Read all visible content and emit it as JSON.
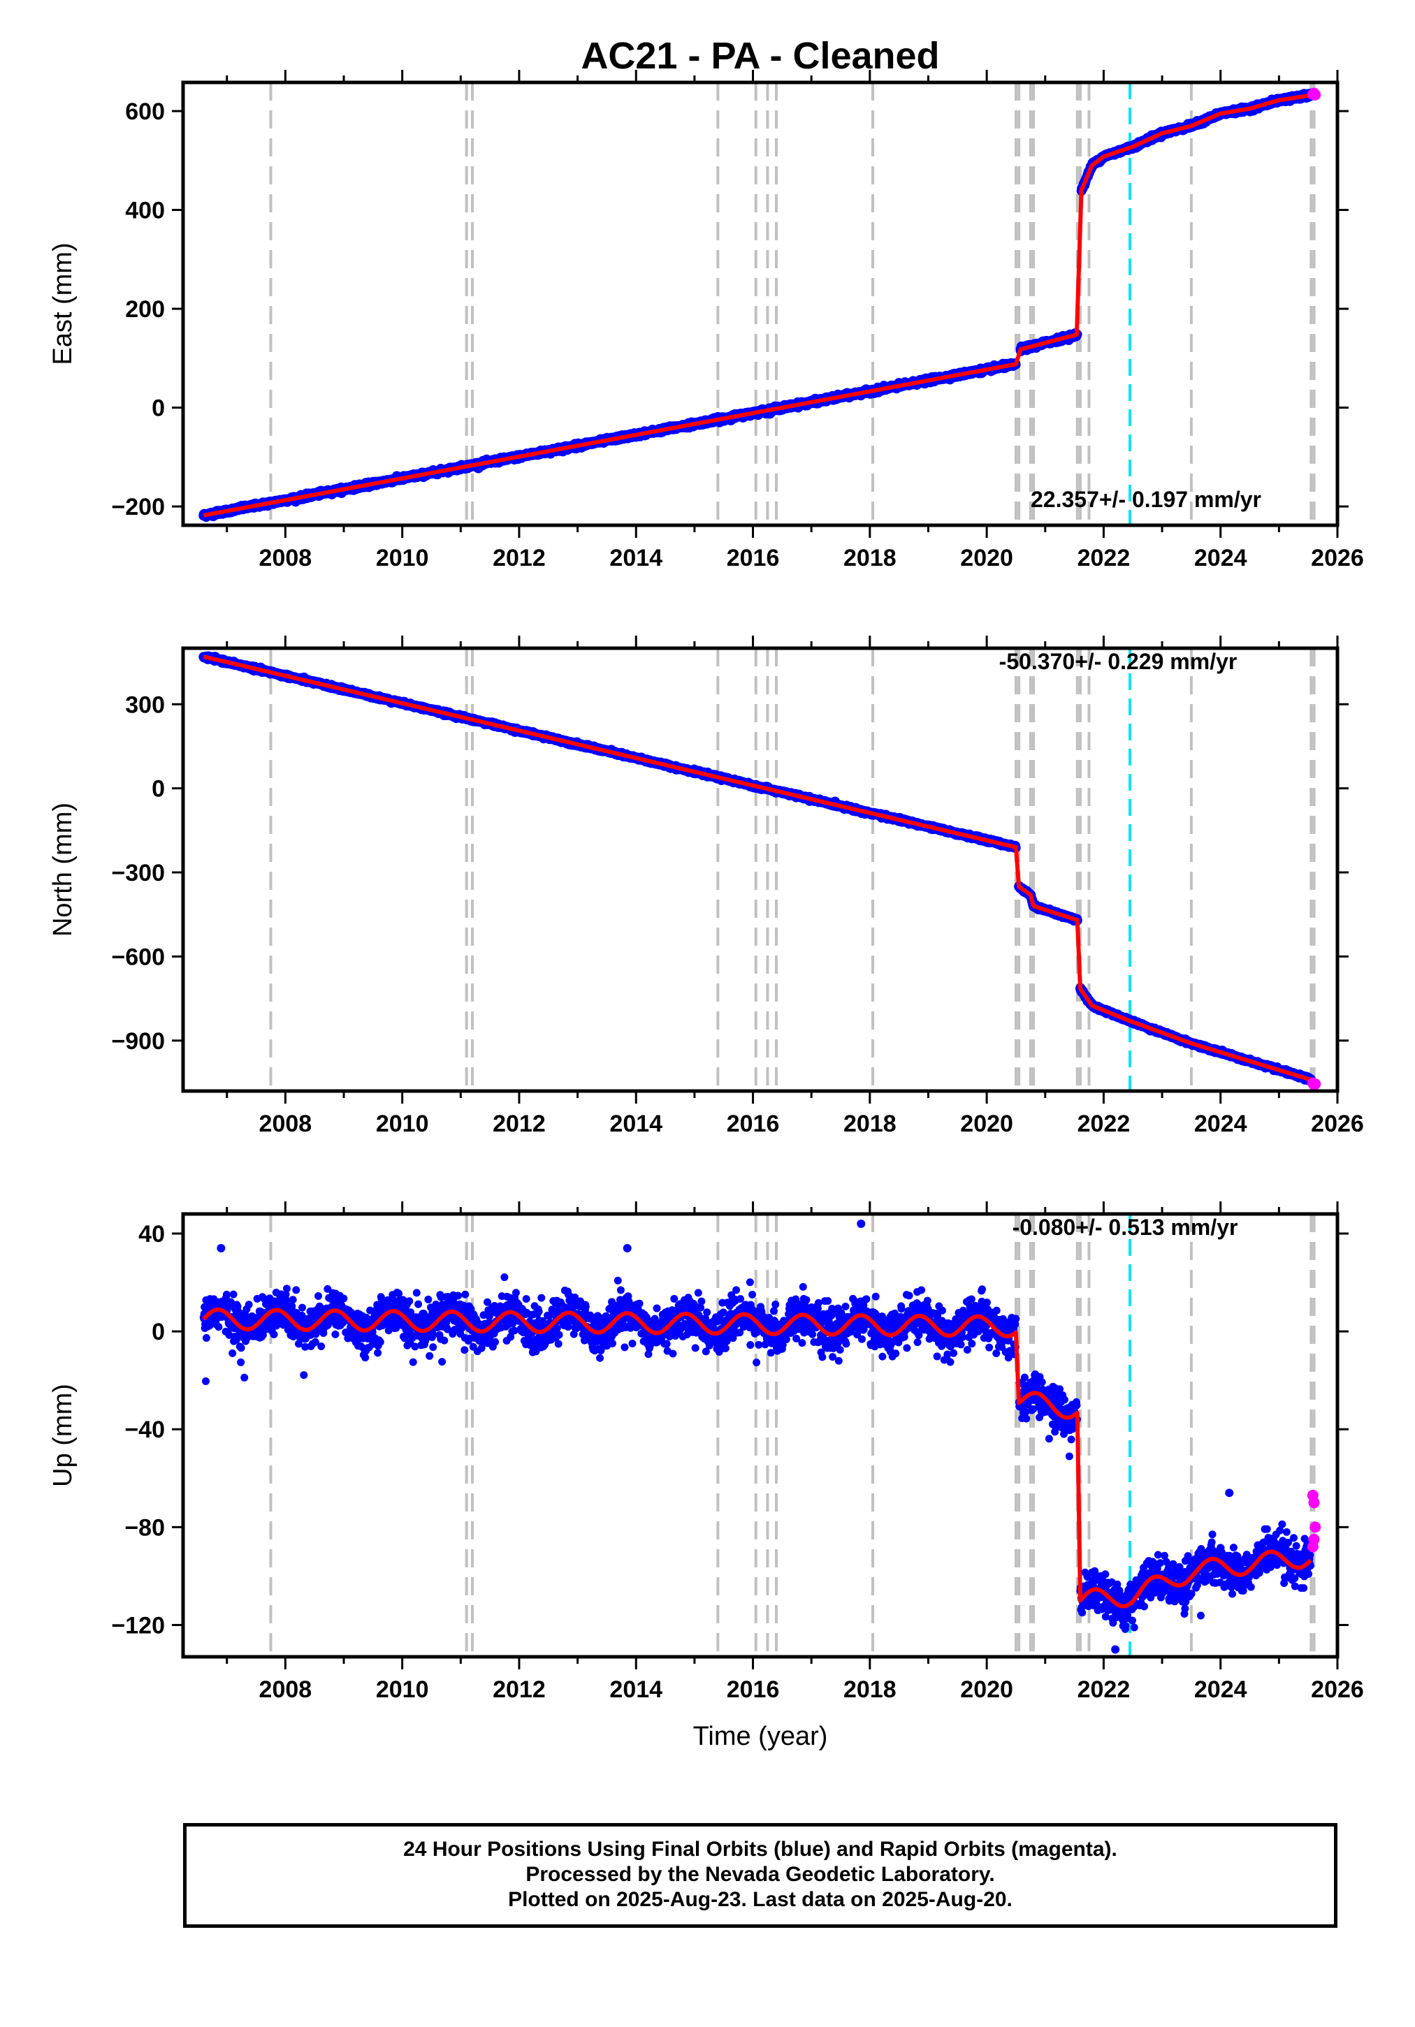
{
  "title": "AC21  - PA - Cleaned",
  "xlabel": "Time (year)",
  "footer": {
    "line1": "24 Hour Positions Using Final Orbits (blue) and Rapid Orbits (magenta).",
    "line2": "Processed by the Nevada Geodetic Laboratory.",
    "line3": "Plotted on 2025-Aug-23. Last data on 2025-Aug-20."
  },
  "colors": {
    "final_orbits": "#0000ff",
    "rapid_orbits": "#ff00ff",
    "model": "#ff0000",
    "steps": "#c0c0c0",
    "event": "#00e5ee"
  },
  "chart_data": [
    {
      "type": "scatter",
      "ylabel": "East (mm)",
      "rate_label": "22.357+/- 0.197 mm/yr",
      "xlim": [
        2006.25,
        2026.0
      ],
      "ylim": [
        -238,
        658
      ],
      "xticks": [
        2008,
        2010,
        2012,
        2014,
        2016,
        2018,
        2020,
        2022,
        2024,
        2026
      ],
      "yticks": [
        -200,
        0,
        200,
        400,
        600
      ],
      "grid": false,
      "model_segments": [
        [
          [
            2006.6,
            -218
          ],
          [
            2020.5,
            88
          ]
        ],
        [
          [
            2020.58,
            118
          ],
          [
            2021.55,
            148
          ]
        ],
        [
          [
            2021.62,
            440
          ],
          [
            2021.8,
            490
          ],
          [
            2022.0,
            508
          ],
          [
            2022.5,
            528
          ],
          [
            2023.0,
            555
          ],
          [
            2023.5,
            570
          ],
          [
            2024.0,
            595
          ],
          [
            2024.5,
            605
          ],
          [
            2025.0,
            622
          ],
          [
            2025.55,
            632
          ]
        ]
      ],
      "rapid_points": [
        [
          2025.58,
          634
        ],
        [
          2025.6,
          636
        ],
        [
          2025.62,
          633
        ]
      ],
      "step_lines": [
        2007.75,
        2011.1,
        2011.2,
        2015.4,
        2016.05,
        2016.25,
        2016.4,
        2018.05,
        2020.5,
        2020.55,
        2020.75,
        2020.8,
        2021.55,
        2021.6,
        2021.75,
        2023.5,
        2025.55,
        2025.6
      ],
      "event_lines": [
        2022.45
      ]
    },
    {
      "type": "scatter",
      "ylabel": "North (mm)",
      "rate_label": "-50.370+/- 0.229 mm/yr",
      "xlim": [
        2006.25,
        2026.0
      ],
      "ylim": [
        -1080,
        500
      ],
      "xticks": [
        2008,
        2010,
        2012,
        2014,
        2016,
        2018,
        2020,
        2022,
        2024,
        2026
      ],
      "yticks": [
        -900,
        -600,
        -300,
        0,
        300
      ],
      "grid": false,
      "model_segments": [
        [
          [
            2006.6,
            470
          ],
          [
            2020.5,
            -210
          ]
        ],
        [
          [
            2020.55,
            -350
          ],
          [
            2020.75,
            -380
          ],
          [
            2020.8,
            -420
          ],
          [
            2021.55,
            -470
          ]
        ],
        [
          [
            2021.6,
            -715
          ],
          [
            2021.8,
            -775
          ],
          [
            2022.45,
            -830
          ],
          [
            2023.5,
            -910
          ],
          [
            2025.55,
            -1040
          ]
        ]
      ],
      "rapid_points": [
        [
          2025.58,
          -1052
        ],
        [
          2025.6,
          -1058
        ],
        [
          2025.62,
          -1055
        ]
      ],
      "step_lines": [
        2007.75,
        2011.1,
        2011.2,
        2015.4,
        2016.05,
        2016.25,
        2016.4,
        2018.05,
        2020.5,
        2020.55,
        2020.75,
        2020.8,
        2021.55,
        2021.6,
        2021.75,
        2023.5,
        2025.55,
        2025.6
      ],
      "event_lines": [
        2022.45
      ]
    },
    {
      "type": "scatter",
      "ylabel": "Up (mm)",
      "rate_label": "-0.080+/- 0.513 mm/yr",
      "xlim": [
        2006.25,
        2026.0
      ],
      "ylim": [
        -133,
        48
      ],
      "xticks": [
        2008,
        2010,
        2012,
        2014,
        2016,
        2018,
        2020,
        2022,
        2024,
        2026
      ],
      "yticks": [
        -120,
        -80,
        -40,
        0,
        40
      ],
      "grid": false,
      "model_segments": [
        [
          [
            2006.6,
            5
          ],
          [
            2020.5,
            2
          ]
        ],
        [
          [
            2020.55,
            -28
          ],
          [
            2021.55,
            -32
          ]
        ],
        [
          [
            2021.6,
            -110
          ],
          [
            2022.5,
            -108
          ],
          [
            2023.5,
            -98
          ],
          [
            2025.55,
            -92
          ]
        ]
      ],
      "seasonal_amplitude_mm": 4,
      "outliers": [
        [
          2006.9,
          34
        ],
        [
          2013.85,
          34
        ],
        [
          2017.85,
          44
        ],
        [
          2024.15,
          -66
        ],
        [
          2022.2,
          -130
        ]
      ],
      "rapid_points": [
        [
          2025.58,
          -67
        ],
        [
          2025.6,
          -70
        ],
        [
          2025.62,
          -80
        ],
        [
          2025.6,
          -85
        ],
        [
          2025.58,
          -88
        ]
      ],
      "step_lines": [
        2007.75,
        2011.1,
        2011.2,
        2015.4,
        2016.05,
        2016.25,
        2016.4,
        2018.05,
        2020.5,
        2020.55,
        2020.75,
        2020.8,
        2021.55,
        2021.6,
        2021.75,
        2023.5,
        2025.55,
        2025.6
      ],
      "event_lines": [
        2022.45
      ]
    }
  ]
}
